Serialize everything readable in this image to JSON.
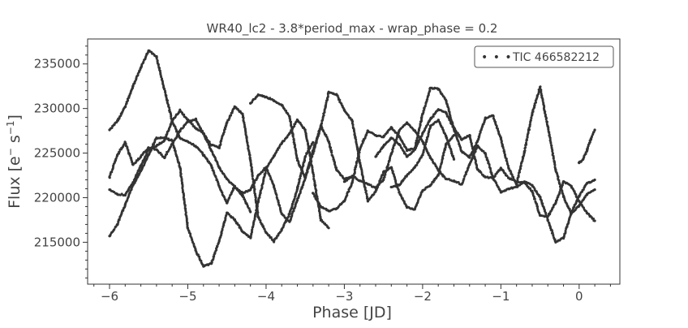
{
  "chart_data": {
    "type": "scatter",
    "title": "WR40_lc2 - 3.8*period_max - wrap_phase = 0.2",
    "xlabel": "Phase [JD]",
    "ylabel_main": "Flux [e",
    "ylabel_sup1": "−",
    "ylabel_mid": " s",
    "ylabel_sup2": "−1",
    "ylabel_end": "]",
    "xlim": [
      -6.28,
      0.52
    ],
    "ylim": [
      210300,
      237800
    ],
    "x_ticks": [
      -6,
      -5,
      -4,
      -3,
      -2,
      -1,
      0
    ],
    "x_tick_labels": [
      "−6",
      "−5",
      "−4",
      "−3",
      "−2",
      "−1",
      "0"
    ],
    "y_ticks": [
      215000,
      220000,
      225000,
      230000,
      235000
    ],
    "y_tick_labels": [
      "215000",
      "220000",
      "225000",
      "230000",
      "235000"
    ],
    "grid": false,
    "legend": {
      "position": "top-right",
      "label": "TIC 466582212",
      "marker": "• • •"
    },
    "series": [
      {
        "name": "",
        "marker_color": "#333333",
        "x": [
          -6.0,
          -5.9,
          -5.8,
          -5.7,
          -5.6,
          -5.5,
          -5.4,
          -5.3,
          -5.2,
          -5.1,
          -5.0,
          -4.9,
          -4.8,
          -4.7,
          -4.6,
          -4.5,
          -4.4,
          -4.3,
          -4.2
        ],
        "y": [
          227600,
          228600,
          230200,
          232500,
          234600,
          236500,
          235800,
          232200,
          228600,
          226700,
          226300,
          225800,
          224800,
          223600,
          221300,
          219400,
          221300,
          220200,
          218400
        ]
      },
      {
        "name": "",
        "marker_color": "#333333",
        "x": [
          -6.0,
          -5.9,
          -5.8,
          -5.7,
          -5.6,
          -5.5,
          -5.4,
          -5.3,
          -5.2,
          -5.1,
          -5.0,
          -4.9,
          -4.8,
          -4.7,
          -4.6,
          -4.5,
          -4.4,
          -4.3,
          -4.2,
          -4.1,
          -4.0,
          -3.9,
          -3.8,
          -3.7,
          -3.6,
          -3.5,
          -3.4
        ],
        "y": [
          220900,
          220400,
          220300,
          221700,
          223600,
          225400,
          225800,
          226400,
          228600,
          229800,
          228700,
          227800,
          227200,
          225900,
          225600,
          228400,
          230200,
          229400,
          224200,
          217800,
          216100,
          215100,
          216400,
          218200,
          221000,
          224600,
          226200
        ]
      },
      {
        "name": "",
        "marker_color": "#333333",
        "x": [
          -6.0,
          -5.9,
          -5.8,
          -5.7,
          -5.6,
          -5.5,
          -5.4,
          -5.3,
          -5.2,
          -5.1,
          -5.0,
          -4.9,
          -4.8,
          -4.7,
          -4.6,
          -4.5,
          -4.4,
          -4.3,
          -4.2,
          -4.1,
          -4.0,
          -3.9,
          -3.8,
          -3.7,
          -3.6,
          -3.5,
          -3.4,
          -3.3,
          -3.2
        ],
        "y": [
          215700,
          217000,
          219200,
          221400,
          223000,
          224800,
          226700,
          226700,
          226400,
          223400,
          216600,
          214100,
          212300,
          212600,
          215100,
          218300,
          217500,
          216200,
          215500,
          219500,
          223200,
          224700,
          226100,
          227200,
          228700,
          227600,
          222800,
          217500,
          216600
        ]
      },
      {
        "name": "",
        "marker_color": "#333333",
        "x": [
          -6.0,
          -5.9,
          -5.8,
          -5.7,
          -5.6,
          -5.5,
          -5.4,
          -5.3,
          -5.2,
          -5.1,
          -5.0,
          -4.9,
          -4.8,
          -4.7,
          -4.6,
          -4.5,
          -4.4,
          -4.3,
          -4.2,
          -4.1,
          -4.0,
          -3.9,
          -3.8,
          -3.7,
          -3.6,
          -3.5,
          -3.4,
          -3.3,
          -3.2,
          -3.1,
          -3.0,
          -2.9
        ],
        "y": [
          222300,
          224800,
          226200,
          223700,
          224600,
          225600,
          225400,
          224500,
          226000,
          227500,
          228500,
          228800,
          227200,
          225300,
          223400,
          222100,
          221200,
          220500,
          220900,
          222500,
          223400,
          221300,
          218200,
          217300,
          219700,
          222200,
          225300,
          228100,
          226300,
          223100,
          222100,
          222300
        ]
      },
      {
        "name": "",
        "marker_color": "#333333",
        "x": [
          -4.2,
          -4.1,
          -4.0,
          -3.9,
          -3.8,
          -3.7,
          -3.6,
          -3.5,
          -3.4,
          -3.3,
          -3.2,
          -3.1,
          -3.0,
          -2.9,
          -2.8,
          -2.7,
          -2.6,
          -2.5,
          -2.4,
          -2.3,
          -2.2,
          -2.1,
          -2.0,
          -1.9,
          -1.8,
          -1.7,
          -1.6
        ],
        "y": [
          230600,
          231500,
          231300,
          230900,
          230400,
          229100,
          224200,
          222200,
          225000,
          227900,
          231800,
          231600,
          229800,
          228600,
          223900,
          219600,
          220700,
          222900,
          223400,
          220600,
          218900,
          218700,
          220800,
          221400,
          222500,
          226000,
          227000
        ]
      },
      {
        "name": "",
        "marker_color": "#333333",
        "x": [
          -3.4,
          -3.3,
          -3.2,
          -3.1,
          -3.0,
          -2.9,
          -2.8,
          -2.7,
          -2.6,
          -2.5,
          -2.4,
          -2.3,
          -2.2,
          -2.1,
          -2.0,
          -1.9,
          -1.8,
          -1.7,
          -1.6,
          -1.5,
          -1.4,
          -1.3,
          -1.2,
          -1.1,
          -1.0,
          -0.9,
          -0.8,
          -0.7,
          -0.6,
          -0.5,
          -0.4,
          -0.3,
          -0.2,
          -0.1,
          0.0,
          0.1,
          0.2
        ],
        "y": [
          220500,
          219000,
          218500,
          218800,
          219600,
          221700,
          225500,
          227500,
          227000,
          226800,
          227900,
          226900,
          225300,
          225500,
          229400,
          232300,
          232200,
          230900,
          227700,
          225200,
          224500,
          226300,
          228900,
          229200,
          226600,
          223300,
          221500,
          225100,
          229400,
          232400,
          228000,
          223100,
          220100,
          218200,
          219100,
          220400,
          220900
        ]
      },
      {
        "name": "",
        "marker_color": "#333333",
        "x": [
          -3.0,
          -2.9,
          -2.8,
          -2.7,
          -2.6,
          -2.5,
          -2.4,
          -2.3,
          -2.2,
          -2.1,
          -2.0,
          -1.9,
          -1.8,
          -1.7,
          -1.6,
          -1.5,
          -1.4,
          -1.3,
          -1.2,
          -1.1,
          -1.0,
          -0.9,
          -0.8,
          -0.7,
          -0.6,
          -0.5,
          -0.4,
          -0.3,
          -0.2,
          -0.1,
          0.0,
          0.1,
          0.2
        ],
        "y": [
          221800,
          222400,
          221900,
          221500,
          221100,
          222000,
          224900,
          227500,
          228400,
          227500,
          226300,
          224500,
          223100,
          222100,
          221900,
          221500,
          223700,
          225800,
          225000,
          222200,
          220600,
          221000,
          221200,
          221800,
          221400,
          220100,
          217500,
          215000,
          215500,
          218300,
          220200,
          221600,
          222000
        ]
      },
      {
        "name": "",
        "marker_color": "#333333",
        "x": [
          -2.6,
          -2.5,
          -2.4,
          -2.3,
          -2.2,
          -2.1,
          -2.0,
          -1.9,
          -1.8,
          -1.7,
          -1.6,
          -1.5,
          -1.4,
          -1.3,
          -1.2,
          -1.1,
          -1.0,
          -0.9,
          -0.8,
          -0.7,
          -0.6,
          -0.5,
          -0.4,
          -0.3,
          -0.2,
          -0.1,
          0.0,
          0.1,
          0.2
        ],
        "y": [
          224600,
          225800,
          226700,
          226000,
          224600,
          225400,
          227200,
          228800,
          229900,
          229500,
          227800,
          226500,
          227000,
          223200,
          222300,
          222200,
          223300,
          222200,
          221800,
          221700,
          220700,
          218000,
          217900,
          219400,
          221800,
          221300,
          219600,
          218300,
          217400
        ]
      },
      {
        "name": "",
        "marker_color": "#333333",
        "x": [
          -2.4,
          -2.3,
          -2.2,
          -2.1,
          -2.0,
          -1.9,
          -1.8,
          -1.7,
          -1.6
        ],
        "y": [
          221200,
          221400,
          222500,
          223400,
          224800,
          228000,
          228700,
          226900,
          224300
        ]
      },
      {
        "name": "",
        "marker_color": "#333333",
        "x": [
          0.0,
          0.05,
          0.1,
          0.15,
          0.2
        ],
        "y": [
          223900,
          224300,
          225300,
          226600,
          227600
        ]
      }
    ]
  }
}
